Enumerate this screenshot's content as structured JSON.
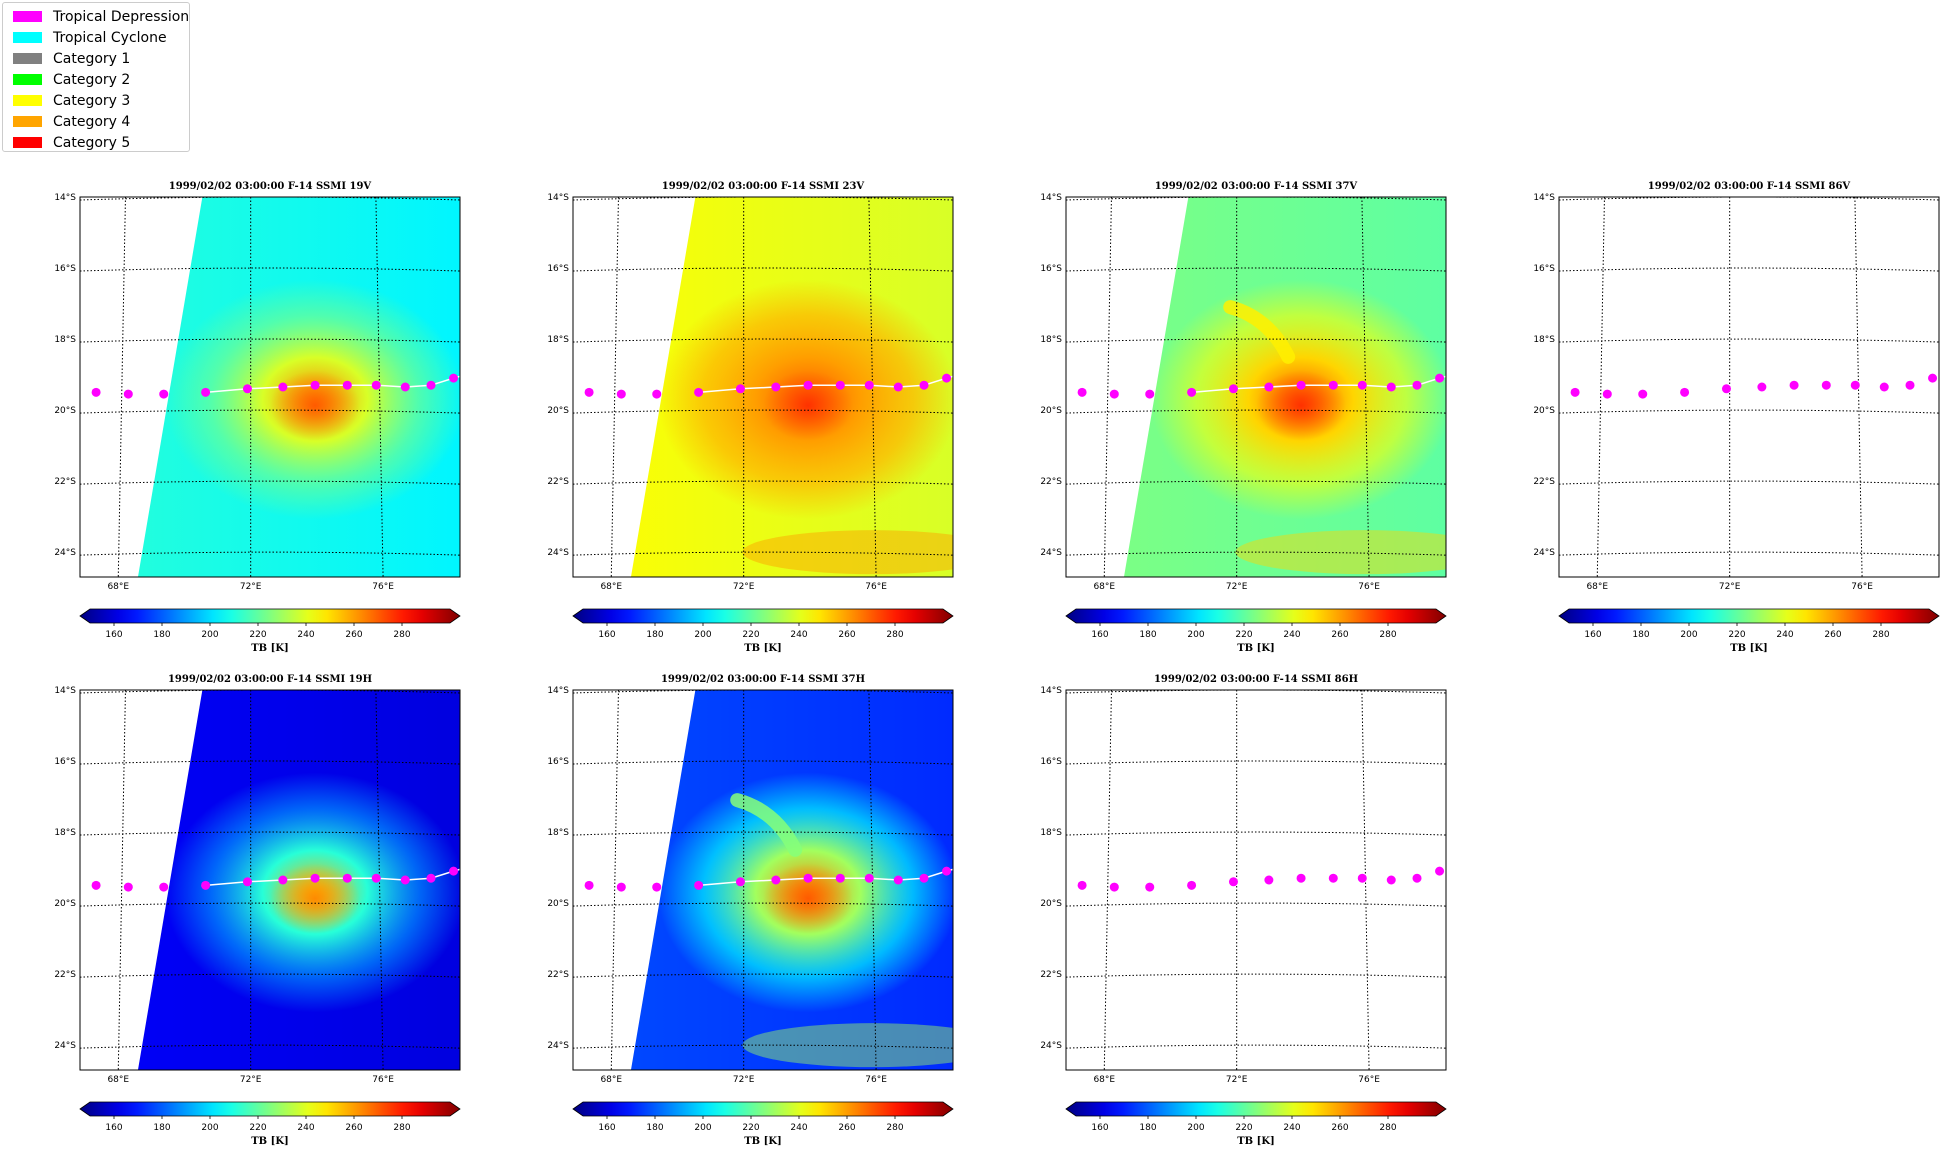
{
  "legend": {
    "items": [
      {
        "label": "Tropical Depression",
        "color": "#ff00ff"
      },
      {
        "label": "Tropical Cyclone",
        "color": "#00ffff"
      },
      {
        "label": "Category 1",
        "color": "#808080"
      },
      {
        "label": "Category 2",
        "color": "#00ff00"
      },
      {
        "label": "Category 3",
        "color": "#ffff00"
      },
      {
        "label": "Category 4",
        "color": "#ffa500"
      },
      {
        "label": "Category 5",
        "color": "#ff0000"
      }
    ]
  },
  "track_color": "#ff00ff",
  "colorbar": {
    "label": "TB [K]",
    "ticks": [
      "160",
      "180",
      "200",
      "220",
      "240",
      "260",
      "280"
    ],
    "range": [
      150,
      300
    ],
    "tick_values": [
      160,
      180,
      200,
      220,
      240,
      260,
      280
    ]
  },
  "map": {
    "lat_labels": [
      "14°S",
      "16°S",
      "18°S",
      "20°S",
      "22°S",
      "24°S"
    ],
    "lon_labels": [
      "68°E",
      "72°E",
      "76°E"
    ]
  },
  "panels": [
    {
      "title": "1999/02/02 03:00:00  F-14 SSMI 19V",
      "channel": "19V",
      "has_data": true,
      "scheme": "cyan-warm"
    },
    {
      "title": "1999/02/02 03:00:00  F-14 SSMI 23V",
      "channel": "23V",
      "has_data": true,
      "scheme": "yellow-orange"
    },
    {
      "title": "1999/02/02 03:00:00  F-14 SSMI 37V",
      "channel": "37V",
      "has_data": true,
      "scheme": "green-warm"
    },
    {
      "title": "1999/02/02 03:00:00  F-14 SSMI 86V",
      "channel": "86V",
      "has_data": false,
      "scheme": "none"
    },
    {
      "title": "1999/02/02 03:00:00  F-14 SSMI 19H",
      "channel": "19H",
      "has_data": true,
      "scheme": "blue-warm"
    },
    {
      "title": "1999/02/02 03:00:00  F-14 SSMI 37H",
      "channel": "37H",
      "has_data": true,
      "scheme": "blue-mixed"
    },
    {
      "title": "1999/02/02 03:00:00  F-14 SSMI 86H",
      "channel": "86H",
      "has_data": false,
      "scheme": "none"
    }
  ],
  "storm_track": {
    "lon": [
      67.2,
      68.2,
      69.3,
      70.6,
      71.9,
      73.0,
      74.0,
      75.0,
      75.9,
      76.8,
      77.6,
      78.3
    ],
    "lat": [
      19.5,
      19.55,
      19.55,
      19.5,
      19.4,
      19.35,
      19.3,
      19.3,
      19.3,
      19.35,
      19.3,
      19.1
    ]
  }
}
